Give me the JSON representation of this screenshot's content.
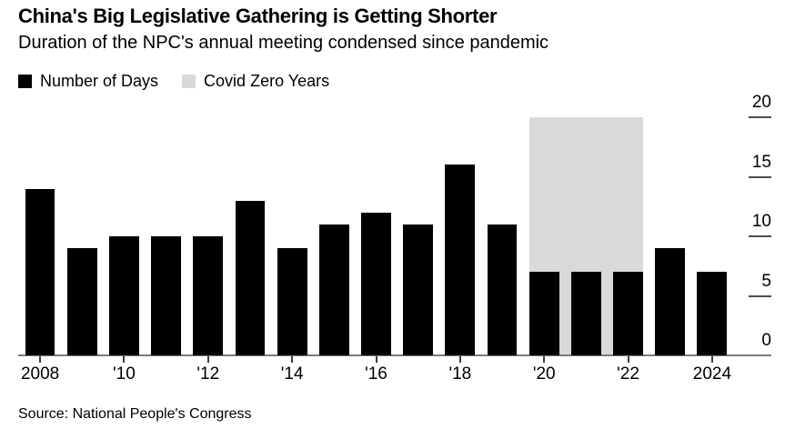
{
  "header": {
    "title": "China's Big Legislative Gathering is Getting Shorter",
    "subtitle": "Duration of the NPC's annual meeting condensed since pandemic"
  },
  "legend": {
    "items": [
      {
        "label": "Number of Days",
        "color": "#000000"
      },
      {
        "label": "Covid Zero Years",
        "color": "#d9d9d9"
      }
    ]
  },
  "source": "Source: National People's Congress",
  "chart_data": {
    "type": "bar",
    "title": "China's Big Legislative Gathering is Getting Shorter",
    "subtitle": "Duration of the NPC's annual meeting condensed since pandemic",
    "series": [
      {
        "name": "Number of Days",
        "color": "#000000",
        "values": [
          14,
          9,
          10,
          10,
          10,
          13,
          9,
          11,
          12,
          11,
          16,
          11,
          7,
          7,
          7,
          9,
          7
        ]
      }
    ],
    "categories": [
      2008,
      2009,
      2010,
      2011,
      2012,
      2013,
      2014,
      2015,
      2016,
      2017,
      2018,
      2019,
      2020,
      2021,
      2022,
      2023,
      2024
    ],
    "x_tick_labels": [
      "2008",
      "'10",
      "'12",
      "'14",
      "'16",
      "'18",
      "'20",
      "'22",
      "2024"
    ],
    "x_tick_indices": [
      0,
      2,
      4,
      6,
      8,
      10,
      12,
      14,
      16
    ],
    "y_ticks": [
      0,
      5,
      10,
      15,
      20
    ],
    "ylim": [
      0,
      20
    ],
    "grid": false,
    "legend_position": "top-left",
    "y_axis_side": "right",
    "covid_zero_band": {
      "label": "Covid Zero Years",
      "from_year": 2020,
      "to_year": 2022,
      "y_extent": [
        0,
        20
      ],
      "color": "#d9d9d9"
    }
  }
}
